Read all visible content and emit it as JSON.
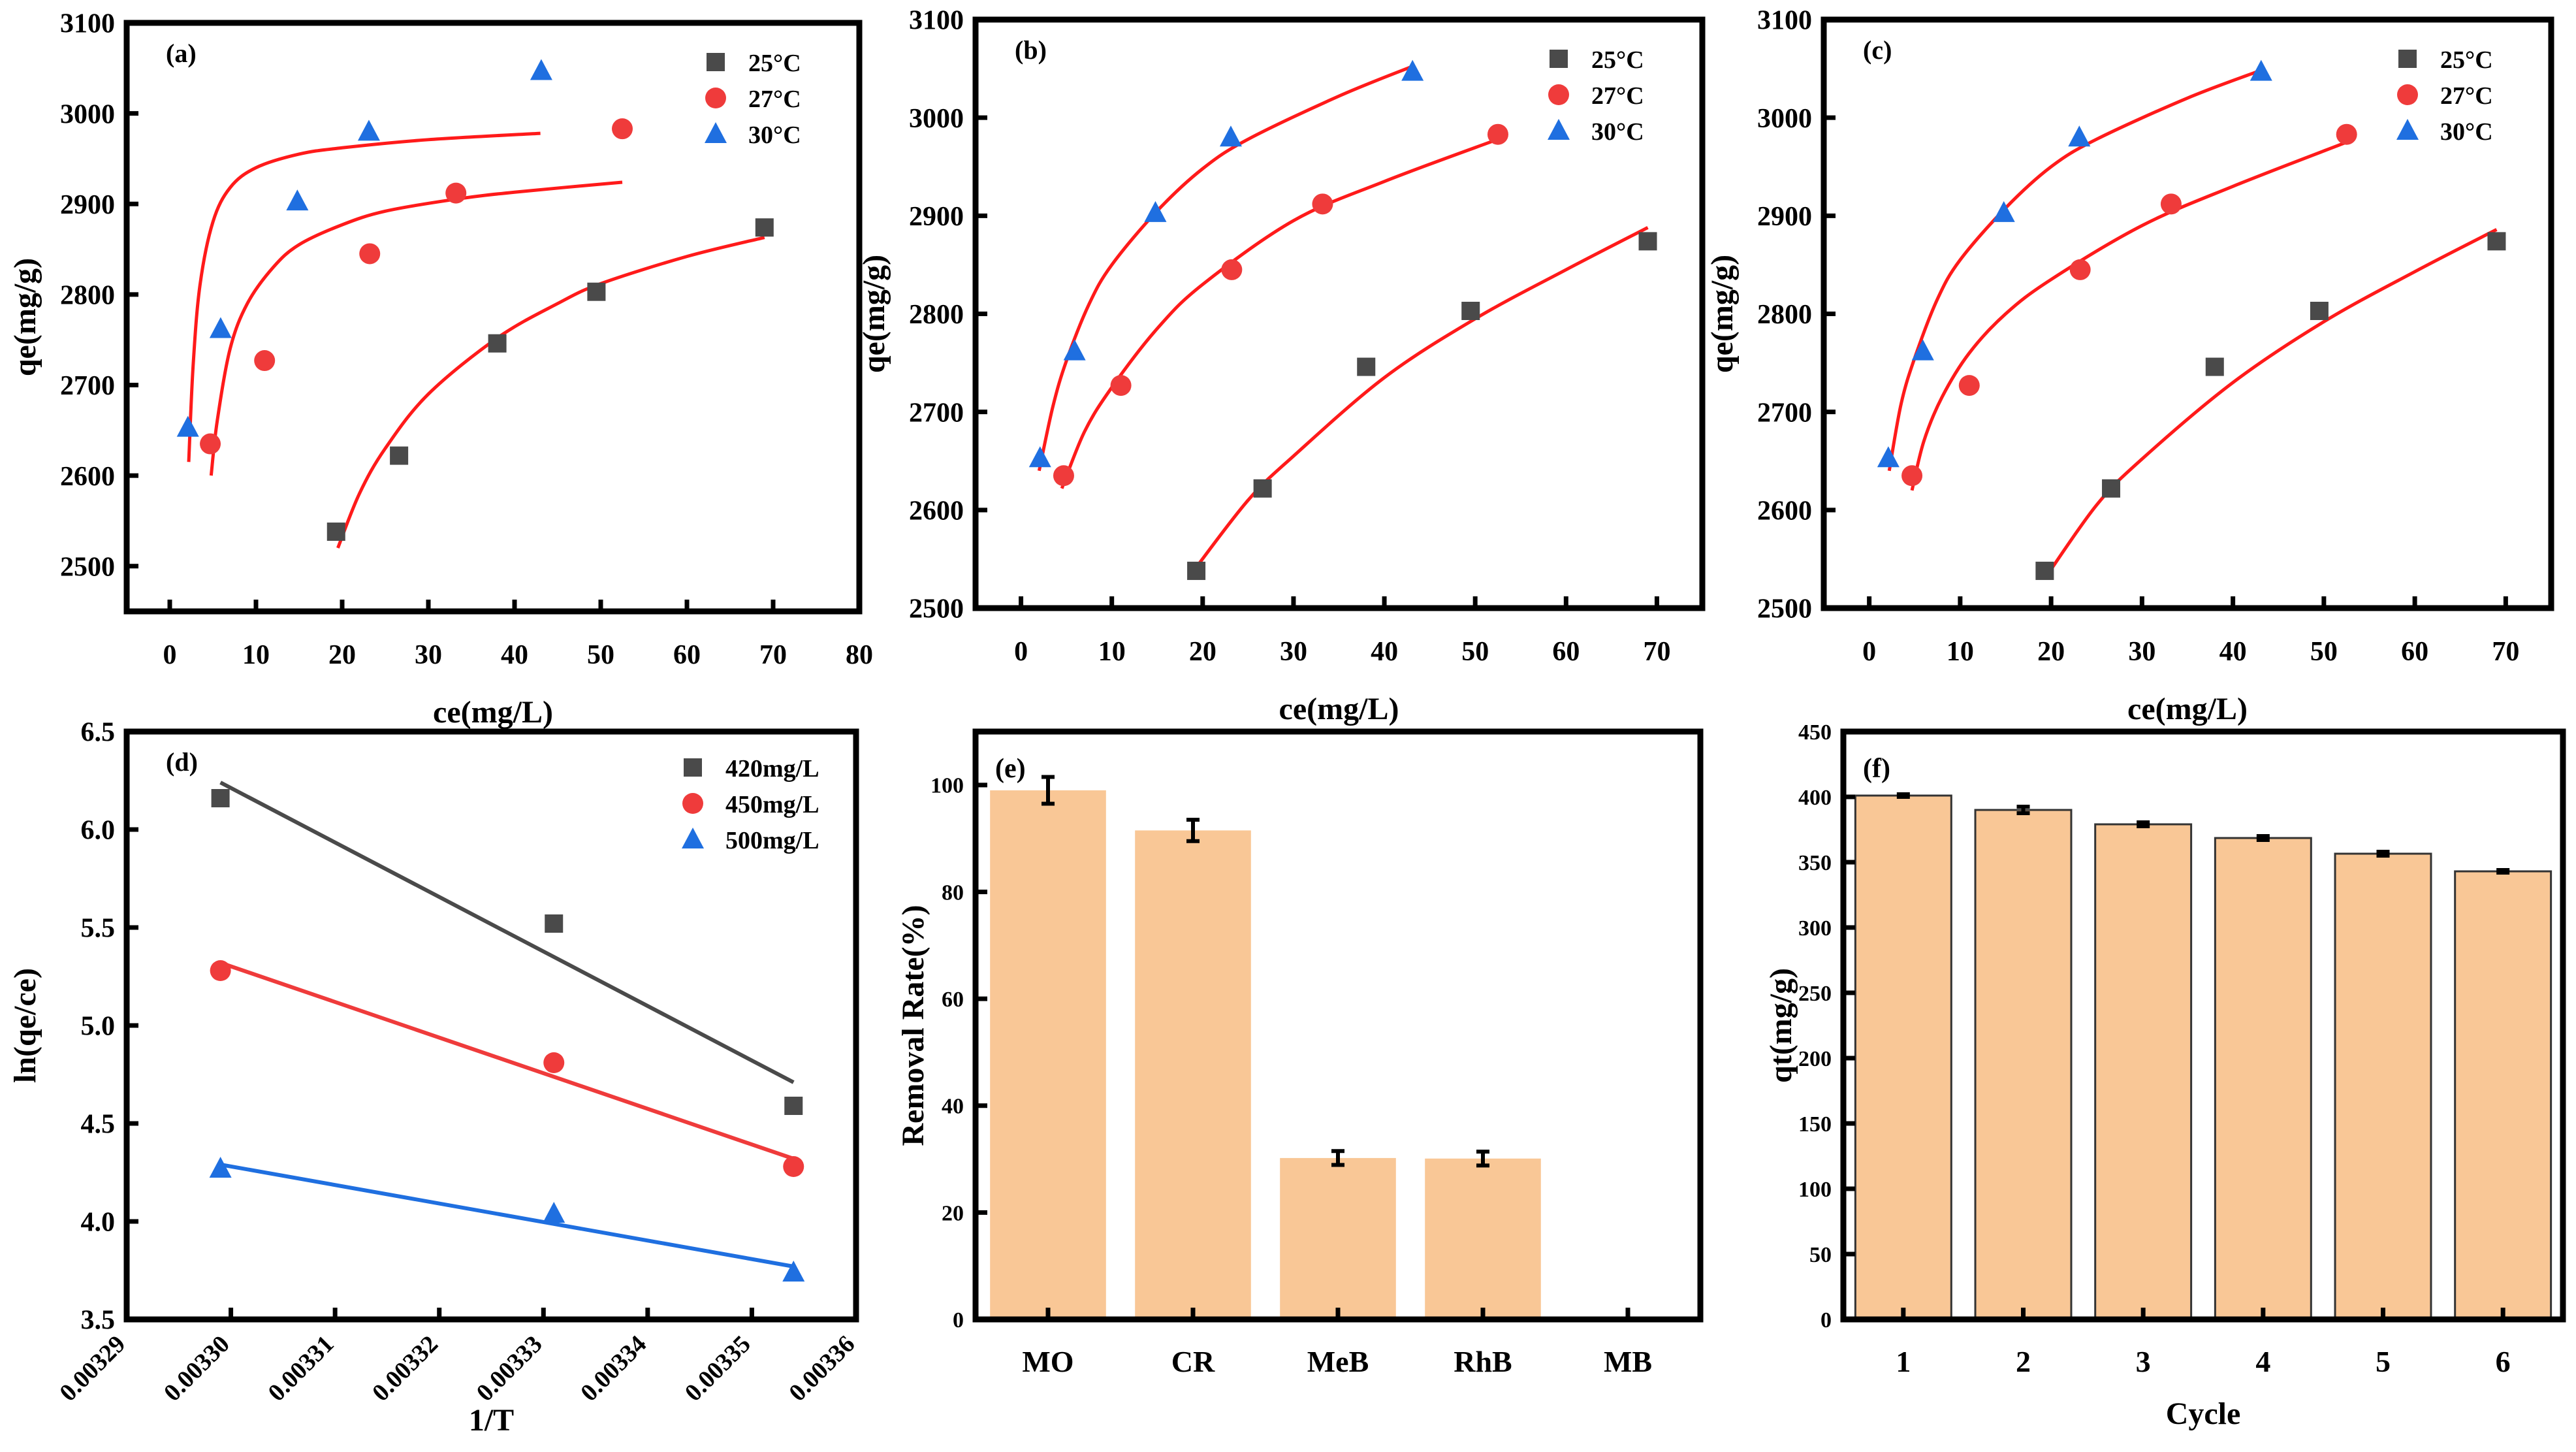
{
  "colors": {
    "s25": "#4a4a4a",
    "s27": "#ef3b3b",
    "s30": "#1f6fe0",
    "fit": "#ff1a1a",
    "bar": "#f9c796",
    "d420": "#4a4a4a",
    "d450": "#ef3b3b",
    "d500": "#1f6fe0"
  },
  "chart_data": [
    {
      "panel": "(a)",
      "type": "scatter",
      "xlabel": "ce(mg/L)",
      "ylabel": "qe(mg/g)",
      "xlim": [
        -5,
        80
      ],
      "ylim": [
        2450,
        3100
      ],
      "xticks": [
        "0",
        "10",
        "20",
        "30",
        "40",
        "50",
        "60",
        "70",
        "80"
      ],
      "xtick_values": [
        0,
        10,
        20,
        30,
        40,
        50,
        60,
        70,
        80
      ],
      "yticks": [
        "2500",
        "2600",
        "2700",
        "2800",
        "2900",
        "3000",
        "3100"
      ],
      "ytick_values": [
        2500,
        2600,
        2700,
        2800,
        2900,
        3000,
        3100
      ],
      "legend": [
        "25°C",
        "27°C",
        "30°C"
      ],
      "legend_position": "top-right",
      "series": [
        {
          "name": "25°C",
          "marker": "square",
          "x": [
            19.3,
            26.6,
            38,
            49.5,
            69
          ],
          "y": [
            2538,
            2622,
            2746,
            2803,
            2874
          ],
          "fit_x": [
            19.5,
            22,
            25,
            30,
            38,
            45,
            50,
            60,
            69
          ],
          "fit_y": [
            2520,
            2580,
            2630,
            2690,
            2752,
            2790,
            2812,
            2842,
            2863
          ]
        },
        {
          "name": "27°C",
          "marker": "circle",
          "x": [
            4.7,
            11,
            23.2,
            33.2,
            52.5
          ],
          "y": [
            2635,
            2727,
            2845,
            2912,
            2983
          ],
          "fit_x": [
            4.8,
            5.5,
            7,
            9,
            12,
            15,
            20,
            25,
            33,
            40,
            52.5
          ],
          "fit_y": [
            2600,
            2660,
            2740,
            2790,
            2830,
            2855,
            2877,
            2892,
            2905,
            2913,
            2924
          ]
        },
        {
          "name": "30°C",
          "marker": "triangle",
          "x": [
            2.1,
            5.9,
            14.8,
            23.1,
            43.1
          ],
          "y": [
            2653,
            2762,
            2903,
            2980,
            3047
          ],
          "fit_x": [
            2.2,
            2.7,
            3.5,
            5,
            7,
            10,
            15,
            20,
            30,
            43
          ],
          "fit_y": [
            2615,
            2720,
            2810,
            2880,
            2918,
            2940,
            2955,
            2962,
            2971,
            2978
          ]
        }
      ]
    },
    {
      "panel": "(b)",
      "type": "scatter",
      "xlabel": "ce(mg/L)",
      "ylabel": "qe(mg/g)",
      "xlim": [
        -5,
        75
      ],
      "ylim": [
        2500,
        3100
      ],
      "xticks": [
        "0",
        "10",
        "20",
        "30",
        "40",
        "50",
        "60",
        "70"
      ],
      "xtick_values": [
        0,
        10,
        20,
        30,
        40,
        50,
        60,
        70
      ],
      "yticks": [
        "2500",
        "2600",
        "2700",
        "2800",
        "2900",
        "3000",
        "3100"
      ],
      "ytick_values": [
        2500,
        2600,
        2700,
        2800,
        2900,
        3000,
        3100
      ],
      "legend": [
        "25°C",
        "27°C",
        "30°C"
      ],
      "legend_position": "top-right",
      "series": [
        {
          "name": "25°C",
          "marker": "square",
          "x": [
            19.3,
            26.6,
            38,
            49.5,
            69
          ],
          "y": [
            2538,
            2622,
            2746,
            2803,
            2874
          ],
          "fit_x": [
            19,
            25,
            30,
            40,
            50,
            60,
            69
          ],
          "fit_y": [
            2538,
            2610,
            2655,
            2735,
            2795,
            2845,
            2888
          ]
        },
        {
          "name": "27°C",
          "marker": "circle",
          "x": [
            4.7,
            11,
            23.2,
            33.2,
            52.5
          ],
          "y": [
            2635,
            2727,
            2845,
            2912,
            2983
          ],
          "fit_x": [
            4.5,
            7,
            10,
            15,
            20,
            30,
            40,
            52.5
          ],
          "fit_y": [
            2622,
            2680,
            2725,
            2785,
            2830,
            2895,
            2935,
            2978
          ]
        },
        {
          "name": "30°C",
          "marker": "triangle",
          "x": [
            2.1,
            5.9,
            14.8,
            23.1,
            43.1
          ],
          "y": [
            2653,
            2762,
            2903,
            2980,
            3047
          ],
          "fit_x": [
            2,
            3.5,
            5,
            7.5,
            10,
            15,
            20,
            25,
            35,
            43
          ],
          "fit_y": [
            2640,
            2705,
            2752,
            2810,
            2850,
            2905,
            2948,
            2978,
            3022,
            3052
          ]
        }
      ]
    },
    {
      "panel": "(c)",
      "type": "scatter",
      "xlabel": "ce(mg/L)",
      "ylabel": "qe(mg/g)",
      "xlim": [
        -5,
        75
      ],
      "ylim": [
        2500,
        3100
      ],
      "xticks": [
        "0",
        "10",
        "20",
        "30",
        "40",
        "50",
        "60",
        "70"
      ],
      "xtick_values": [
        0,
        10,
        20,
        30,
        40,
        50,
        60,
        70
      ],
      "yticks": [
        "2500",
        "2600",
        "2700",
        "2800",
        "2900",
        "3000",
        "3100"
      ],
      "ytick_values": [
        2500,
        2600,
        2700,
        2800,
        2900,
        3000,
        3100
      ],
      "legend": [
        "25°C",
        "27°C",
        "30°C"
      ],
      "legend_position": "top-right",
      "series": [
        {
          "name": "25°C",
          "marker": "square",
          "x": [
            19.3,
            26.6,
            38,
            49.5,
            69
          ],
          "y": [
            2538,
            2622,
            2746,
            2803,
            2874
          ],
          "fit_x": [
            19.3,
            25,
            30,
            40,
            50,
            60,
            69
          ],
          "fit_y": [
            2530,
            2605,
            2652,
            2730,
            2792,
            2843,
            2886
          ]
        },
        {
          "name": "27°C",
          "marker": "circle",
          "x": [
            4.7,
            11,
            23.2,
            33.2,
            52.5
          ],
          "y": [
            2635,
            2727,
            2845,
            2912,
            2983
          ],
          "fit_x": [
            4.7,
            6,
            8,
            11,
            15,
            20,
            30,
            40,
            52.5
          ],
          "fit_y": [
            2620,
            2670,
            2715,
            2760,
            2800,
            2835,
            2890,
            2930,
            2975
          ]
        },
        {
          "name": "30°C",
          "marker": "triangle",
          "x": [
            2.1,
            5.9,
            14.8,
            23.1,
            43.1
          ],
          "y": [
            2653,
            2762,
            2903,
            2980,
            3047
          ],
          "fit_x": [
            2.2,
            3.5,
            5,
            7.5,
            10,
            15,
            20,
            25,
            35,
            43
          ],
          "fit_y": [
            2640,
            2708,
            2755,
            2815,
            2855,
            2908,
            2950,
            2978,
            3020,
            3048
          ]
        }
      ]
    },
    {
      "panel": "(d)",
      "type": "scatter",
      "xlabel": "1/T",
      "ylabel": "ln(qe/ce)",
      "xlim": [
        0.00329,
        0.00336
      ],
      "ylim": [
        3.5,
        6.5
      ],
      "xticks": [
        "0.00329",
        "0.00330",
        "0.00331",
        "0.00332",
        "0.00333",
        "0.00334",
        "0.00335",
        "0.00336"
      ],
      "xtick_values": [
        0.00329,
        0.0033,
        0.00331,
        0.00332,
        0.00333,
        0.00334,
        0.00335,
        0.00336
      ],
      "yticks": [
        "3.5",
        "4.0",
        "4.5",
        "5.0",
        "5.5",
        "6.0",
        "6.5"
      ],
      "ytick_values": [
        3.5,
        4.0,
        4.5,
        5.0,
        5.5,
        6.0,
        6.5
      ],
      "legend": [
        "420mg/L",
        "450mg/L",
        "500mg/L"
      ],
      "legend_position": "top-right",
      "series": [
        {
          "name": "420mg/L",
          "marker": "square",
          "x": [
            0.003299,
            0.003331,
            0.003354
          ],
          "y": [
            6.16,
            5.52,
            4.59
          ],
          "fit_x": [
            0.003299,
            0.003354
          ],
          "fit_y": [
            6.24,
            4.71
          ]
        },
        {
          "name": "450mg/L",
          "marker": "circle",
          "x": [
            0.003299,
            0.003331,
            0.003354
          ],
          "y": [
            5.28,
            4.81,
            4.28
          ],
          "fit_x": [
            0.003299,
            0.003354
          ],
          "fit_y": [
            5.32,
            4.32
          ]
        },
        {
          "name": "500mg/L",
          "marker": "triangle",
          "x": [
            0.003299,
            0.003331,
            0.003354
          ],
          "y": [
            4.27,
            4.04,
            3.74
          ],
          "fit_x": [
            0.003299,
            0.003354
          ],
          "fit_y": [
            4.29,
            3.77
          ]
        }
      ]
    },
    {
      "panel": "(e)",
      "type": "bar",
      "xlabel": "",
      "ylabel": "Removal Rate(%)",
      "ylim": [
        0,
        110
      ],
      "yticks": [
        "0",
        "20",
        "40",
        "60",
        "80",
        "100"
      ],
      "ytick_values": [
        0,
        20,
        40,
        60,
        80,
        100
      ],
      "categories": [
        "MO",
        "CR",
        "MeB",
        "RhB",
        "MB"
      ],
      "values": [
        99,
        91.5,
        30.2,
        30.1,
        0
      ],
      "errors": [
        2.5,
        2,
        1.3,
        1.3,
        0
      ]
    },
    {
      "panel": "(f)",
      "type": "bar",
      "xlabel": "Cycle",
      "ylabel": "qt(mg/g)",
      "ylim": [
        0,
        450
      ],
      "yticks": [
        "0",
        "50",
        "100",
        "150",
        "200",
        "250",
        "300",
        "350",
        "400",
        "450"
      ],
      "ytick_values": [
        0,
        50,
        100,
        150,
        200,
        250,
        300,
        350,
        400,
        450
      ],
      "categories": [
        "1",
        "2",
        "3",
        "4",
        "5",
        "6"
      ],
      "values": [
        401,
        390,
        379,
        368.5,
        356.5,
        343
      ],
      "errors": [
        1,
        2.5,
        1.5,
        1.5,
        1.5,
        1
      ]
    }
  ]
}
